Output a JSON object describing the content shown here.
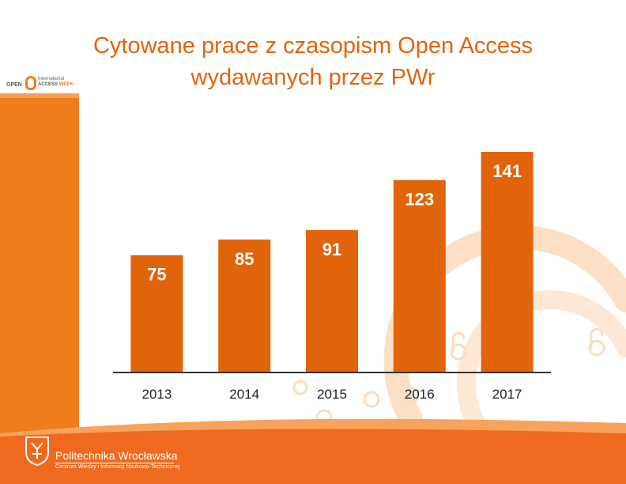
{
  "title": {
    "line1": "Cytowane prace z czasopism Open Access",
    "line2": "wydawanych przez PWr"
  },
  "logo": {
    "open": "OPEN",
    "international": "International",
    "access": "ACCESS",
    "week": "WEEK"
  },
  "footer": {
    "university": "Politechnika Wrocławska",
    "unit": "Centrum Wiedzy i Informacji Naukowo-Technicznej"
  },
  "colors": {
    "bar": "#e2640a",
    "title": "#e2640a",
    "band": "#f07c1c",
    "footer_band": "#ef6a1e",
    "label": "#ffffff",
    "axis": "#333333"
  },
  "chart_data": {
    "type": "bar",
    "categories": [
      "2013",
      "2014",
      "2015",
      "2016",
      "2017"
    ],
    "values": [
      75,
      85,
      91,
      123,
      141
    ],
    "ylim": [
      0,
      150
    ],
    "grid": false,
    "legend": "none"
  }
}
